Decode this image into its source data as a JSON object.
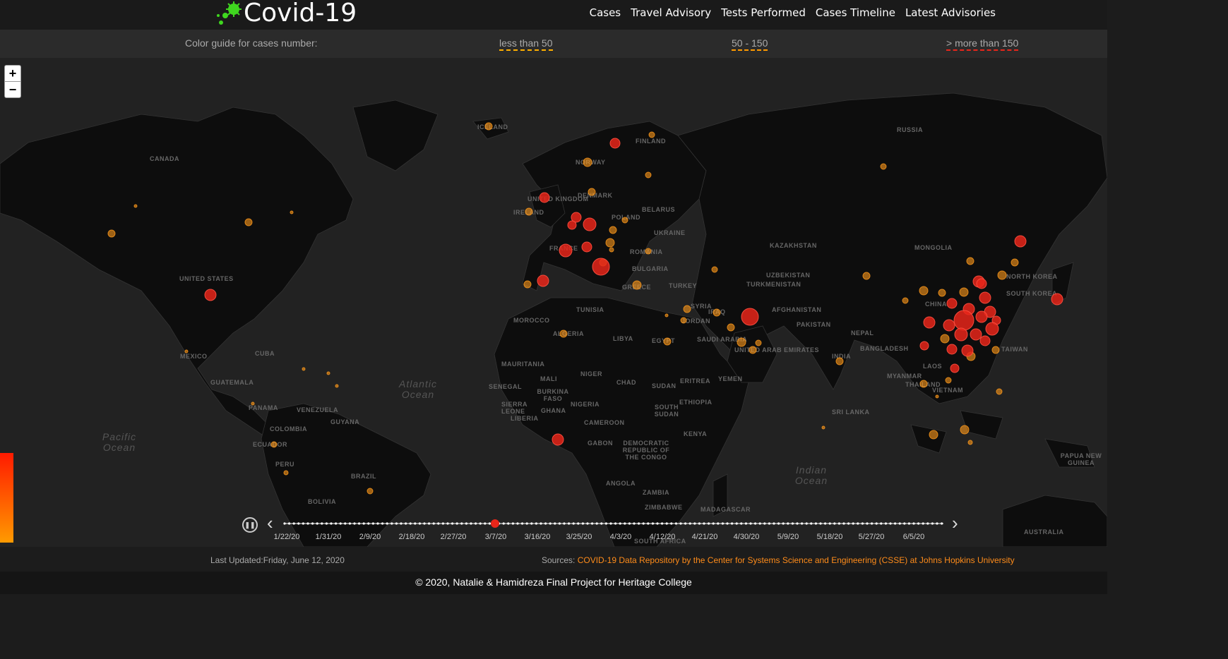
{
  "header": {
    "title": "Covid-19",
    "nav": [
      "Cases",
      "Travel Advisory",
      "Tests Performed",
      "Cases Timeline",
      "Latest Advisories"
    ]
  },
  "legend": {
    "label": "Color guide for cases number:",
    "low": "less than 50",
    "mid": "50 - 150",
    "high": "> more than 150",
    "colors": {
      "low": "#ffb000",
      "mid": "#ff9a00",
      "high": "#e8261a"
    }
  },
  "map": {
    "zoom_in": "+",
    "zoom_out": "−",
    "country_labels": [
      "CANADA",
      "UNITED STATES",
      "MEXICO",
      "CUBA",
      "GUATEMALA",
      "PANAMA",
      "VENEZUELA",
      "GUYANA",
      "COLOMBIA",
      "ECUADOR",
      "PERU",
      "BRAZIL",
      "BOLIVIA",
      "ICELAND",
      "NORWAY",
      "FINLAND",
      "DENMARK",
      "UNITED KINGDOM",
      "IRELAND",
      "POLAND",
      "BELARUS",
      "UKRAINE",
      "FRANCE",
      "ROMANIA",
      "BULGARIA",
      "GREECE",
      "TURKEY",
      "RUSSIA",
      "KAZAKHSTAN",
      "MONGOLIA",
      "UZBEKISTAN",
      "TURKMENISTAN",
      "AFGHANISTAN",
      "PAKISTAN",
      "NEPAL",
      "INDIA",
      "BANGLADESH",
      "CHINA",
      "NORTH KOREA",
      "SOUTH KOREA",
      "TAIWAN",
      "LAOS",
      "MYANMAR",
      "THAILAND",
      "VIETNAM",
      "SRI LANKA",
      "TUNISIA",
      "MOROCCO",
      "ALGERIA",
      "LIBYA",
      "EGYPT",
      "SAUDI ARABIA",
      "UNITED ARAB EMIRATES",
      "YEMEN",
      "SYRIA",
      "IRAQ",
      "JORDAN",
      "MAURITANIA",
      "MALI",
      "NIGER",
      "CHAD",
      "SUDAN",
      "SENEGAL",
      "BURKINA FASO",
      "NIGERIA",
      "SIERRA LEONE",
      "LIBERIA",
      "GHANA",
      "CAMEROON",
      "GABON",
      "DEMOCRATIC REPUBLIC OF THE CONGO",
      "SOUTH SUDAN",
      "ETHIOPIA",
      "ERITREA",
      "KENYA",
      "ANGOLA",
      "ZAMBIA",
      "ZIMBABWE",
      "MADAGASCAR",
      "SOUTH AFRICA",
      "PAPUA NEW GUINEA",
      "AUSTRALIA"
    ],
    "oceans": [
      "Atlantic Ocean",
      "Pacific Ocean",
      "Indian Ocean"
    ]
  },
  "timeline": {
    "dates": [
      "1/22/20",
      "1/31/20",
      "2/9/20",
      "2/18/20",
      "2/27/20",
      "3/7/20",
      "3/16/20",
      "3/25/20",
      "4/3/20",
      "4/12/20",
      "4/21/20",
      "4/30/20",
      "5/9/20",
      "5/18/20",
      "5/27/20",
      "6/5/20"
    ],
    "current_date": "3/7/20"
  },
  "footer": {
    "updated": "Last Updated:Friday, June 12, 2020",
    "sources_label": "Sources: ",
    "sources_link": "COVID-19 Data Repository by the Center for Systems Science and Engineering (CSSE) at Johns Hopkins University",
    "copyright": "© 2020, Natalie & Hamidreza Final Project for Heritage College"
  }
}
